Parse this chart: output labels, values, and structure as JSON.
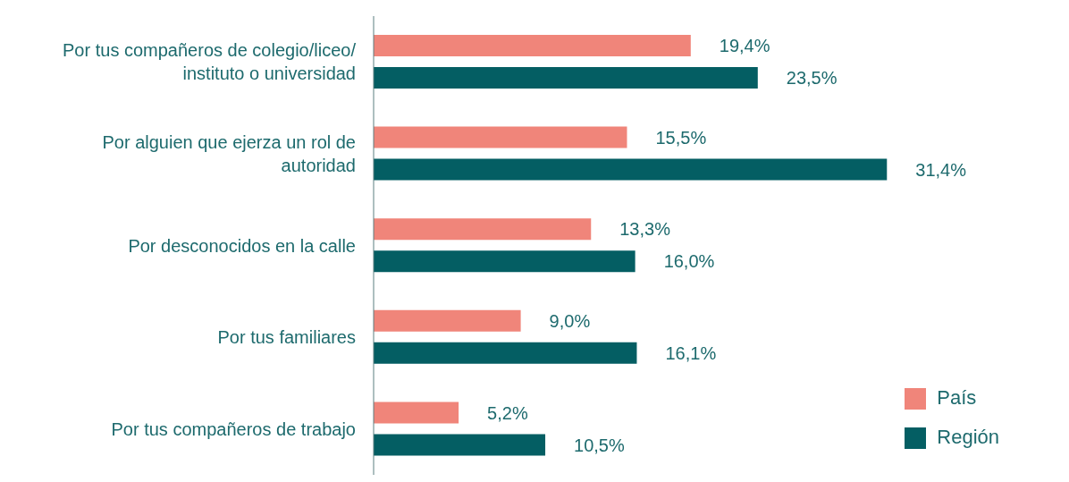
{
  "chart_data": {
    "type": "bar",
    "orientation": "horizontal",
    "legend": "bottom right",
    "grid": false,
    "categories": [
      "Por tus compañeros de colegio/liceo/ instituto o universidad",
      "Por alguien que ejerza un rol de autoridad",
      "Por desconocidos en la calle",
      "Por tus familiares",
      "Por tus compañeros de trabajo"
    ],
    "series": [
      {
        "name": "País",
        "color": "#f0857a",
        "values": [
          19.4,
          15.5,
          13.3,
          9.0,
          5.2
        ],
        "value_labels": [
          "19,4%",
          "15,5%",
          "13,3%",
          "9,0%",
          "5,2%"
        ]
      },
      {
        "name": "Región",
        "color": "#045e63",
        "values": [
          23.5,
          31.4,
          16.0,
          16.1,
          10.5
        ],
        "value_labels": [
          "23,5%",
          "31,4%",
          "16,0%",
          "16,1%",
          "10,5%"
        ]
      }
    ]
  }
}
